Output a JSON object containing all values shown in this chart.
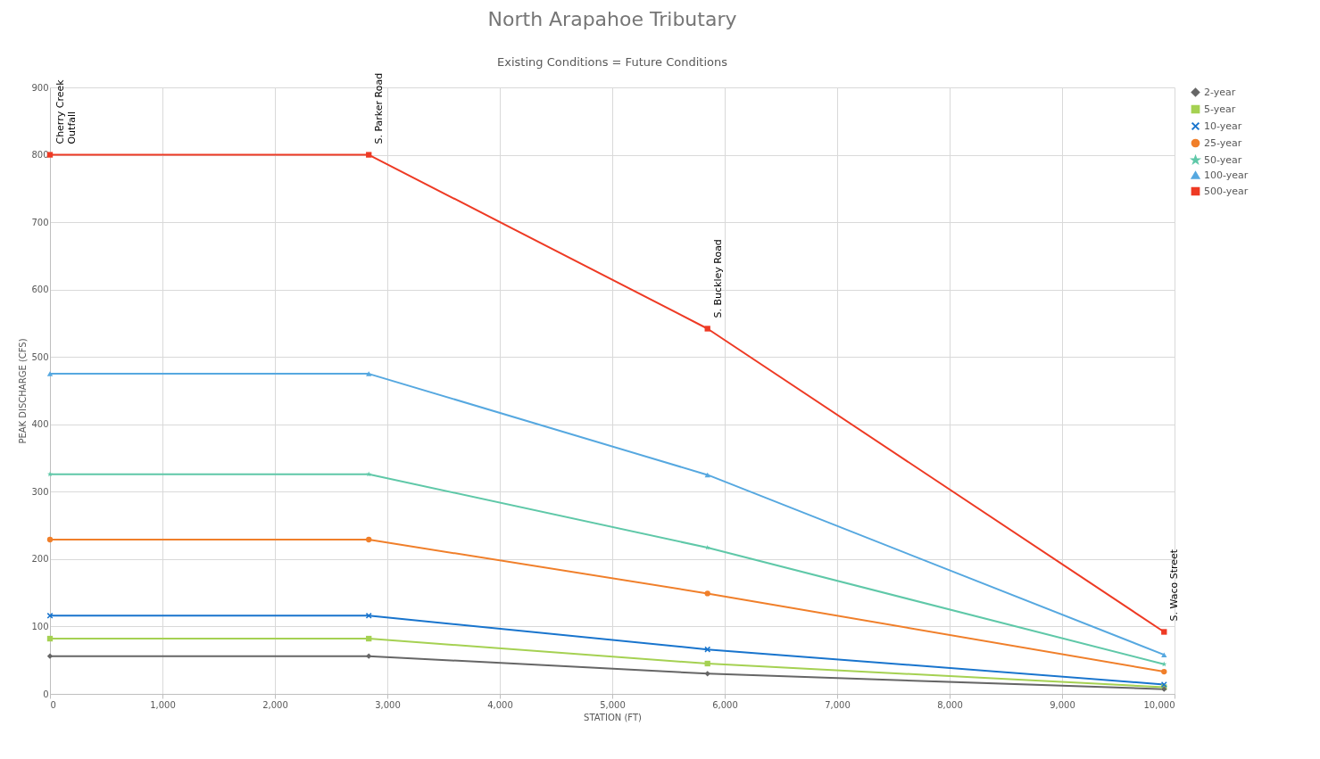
{
  "chart_data": {
    "type": "line",
    "title": "North Arapahoe Tributary",
    "subtitle": "Existing Conditions = Future Conditions",
    "xlabel": "STATION (FT)",
    "ylabel": "PEAK DISCHARGE (CFS)",
    "x": [
      0,
      2835,
      5847,
      9907
    ],
    "series": [
      {
        "name": "2-year",
        "color": "#666666",
        "marker": "diamond",
        "values": [
          56,
          56,
          30,
          7
        ]
      },
      {
        "name": "5-year",
        "color": "#a5d152",
        "marker": "square",
        "values": [
          82,
          82,
          45,
          10
        ]
      },
      {
        "name": "10-year",
        "color": "#1874cd",
        "marker": "cross",
        "values": [
          116,
          116,
          66,
          14
        ]
      },
      {
        "name": "25-year",
        "color": "#f07f2a",
        "marker": "circle",
        "values": [
          229,
          229,
          149,
          33
        ]
      },
      {
        "name": "50-year",
        "color": "#5fc8a8",
        "marker": "star",
        "values": [
          326,
          326,
          217,
          44
        ]
      },
      {
        "name": "100-year",
        "color": "#56a8e0",
        "marker": "triangle",
        "values": [
          475,
          475,
          325,
          58
        ]
      },
      {
        "name": "500-year",
        "color": "#ee3a24",
        "marker": "square",
        "values": [
          800,
          800,
          542,
          92
        ]
      }
    ],
    "annotations": [
      {
        "text": "Cherry Creek\nOutfall",
        "x": 0,
        "y": 800
      },
      {
        "text": "S. Parker Road",
        "x": 2835,
        "y": 800
      },
      {
        "text": "S. Buckley Road",
        "x": 5847,
        "y": 542
      },
      {
        "text": "S. Waco Street",
        "x": 9907,
        "y": 92
      }
    ],
    "xlim": [
      0,
      10000
    ],
    "xticks": [
      0,
      {
        "value": 1000,
        "label": "1,000"
      },
      {
        "value": 2000,
        "label": "2,000"
      },
      {
        "value": 3000,
        "label": "3,000"
      },
      {
        "value": 4000,
        "label": "4,000"
      },
      {
        "value": 5000,
        "label": "5,000"
      },
      {
        "value": 6000,
        "label": "6,000"
      },
      {
        "value": 7000,
        "label": "7,000"
      },
      {
        "value": 8000,
        "label": "8,000"
      },
      {
        "value": 9000,
        "label": "9,000"
      },
      {
        "value": 10000,
        "label": "10,000"
      }
    ],
    "ylim": [
      0,
      900
    ],
    "yticks": [
      0,
      100,
      200,
      300,
      400,
      500,
      600,
      700,
      800,
      900
    ],
    "grid": true,
    "legend": "right",
    "line_style": "solid"
  }
}
